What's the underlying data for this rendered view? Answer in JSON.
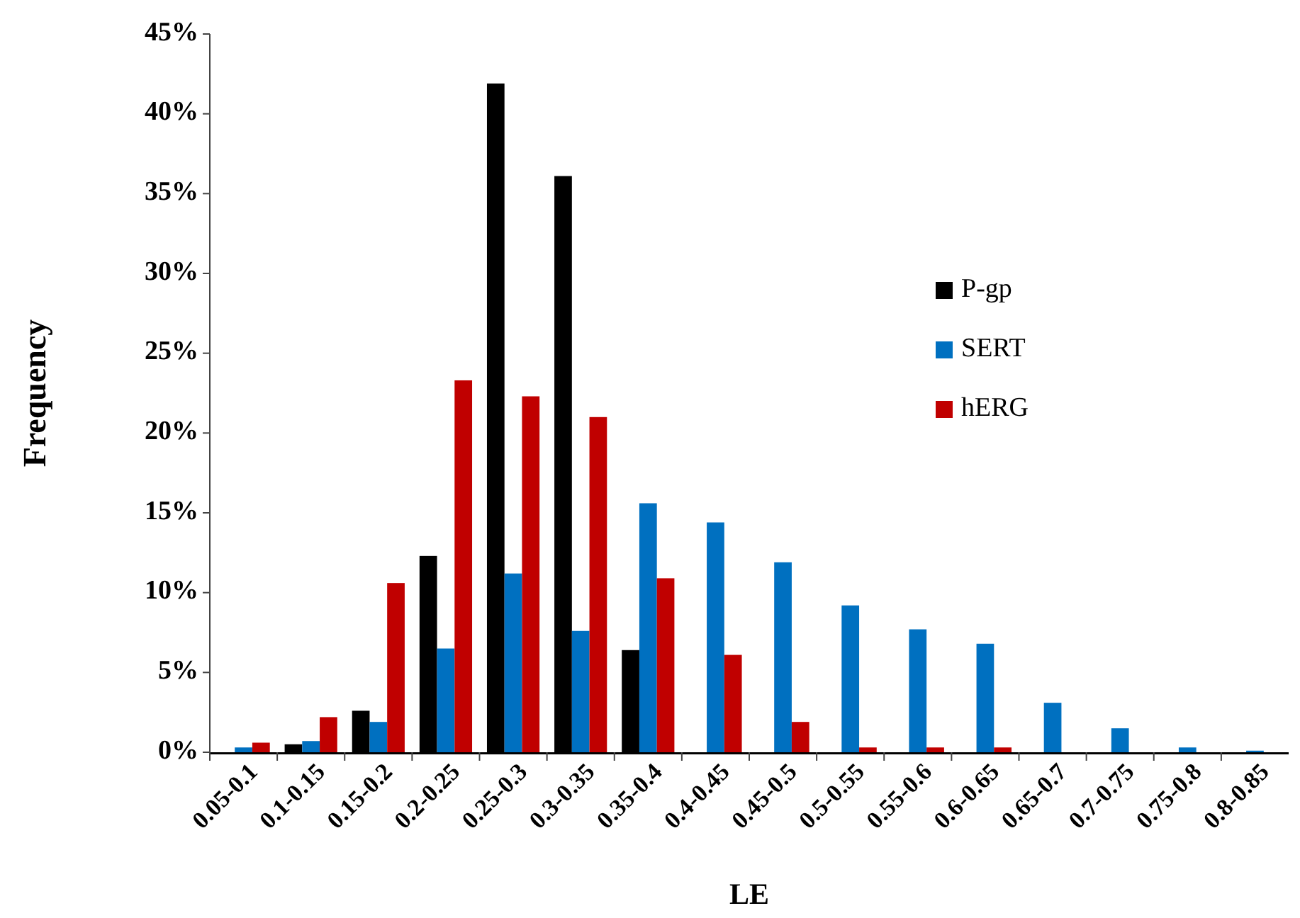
{
  "chart_data": {
    "type": "bar",
    "xlabel": "LE",
    "ylabel": "Frequency",
    "categories": [
      "0.05-0.1",
      "0.1-0.15",
      "0.15-0.2",
      "0.2-0.25",
      "0.25-0.3",
      "0.3-0.35",
      "0.35-0.4",
      "0.4-0.45",
      "0.45-0.5",
      "0.5-0.55",
      "0.55-0.6",
      "0.6-0.65",
      "0.65-0.7",
      "0.7-0.75",
      "0.75-0.8",
      "0.8-0.85"
    ],
    "series": [
      {
        "name": "P-gp",
        "color": "#000000",
        "values": [
          0,
          0.5,
          2.6,
          12.3,
          41.9,
          36.1,
          6.4,
          0,
          0,
          0,
          0,
          0,
          0,
          0,
          0,
          0
        ]
      },
      {
        "name": "SERT",
        "color": "#0070c0",
        "values": [
          0.3,
          0.7,
          1.9,
          6.5,
          11.2,
          7.6,
          15.6,
          14.4,
          11.9,
          9.2,
          7.7,
          6.8,
          3.1,
          1.5,
          0.3,
          0.1
        ]
      },
      {
        "name": "hERG",
        "color": "#c00000",
        "values": [
          0.6,
          2.2,
          10.6,
          23.3,
          22.3,
          21.0,
          10.9,
          6.1,
          1.9,
          0.3,
          0.3,
          0.3,
          0,
          0,
          0,
          0
        ]
      }
    ],
    "ylim": [
      0,
      45
    ],
    "yticks": [
      {
        "value": 0,
        "label": "0%"
      },
      {
        "value": 5,
        "label": "5%"
      },
      {
        "value": 10,
        "label": "10%"
      },
      {
        "value": 15,
        "label": "15%"
      },
      {
        "value": 20,
        "label": "20%"
      },
      {
        "value": 25,
        "label": "25%"
      },
      {
        "value": 30,
        "label": "30%"
      },
      {
        "value": 35,
        "label": "35%"
      },
      {
        "value": 40,
        "label": "40%"
      },
      {
        "value": 45,
        "label": "45%"
      }
    ],
    "grid": false,
    "legend": "right"
  }
}
